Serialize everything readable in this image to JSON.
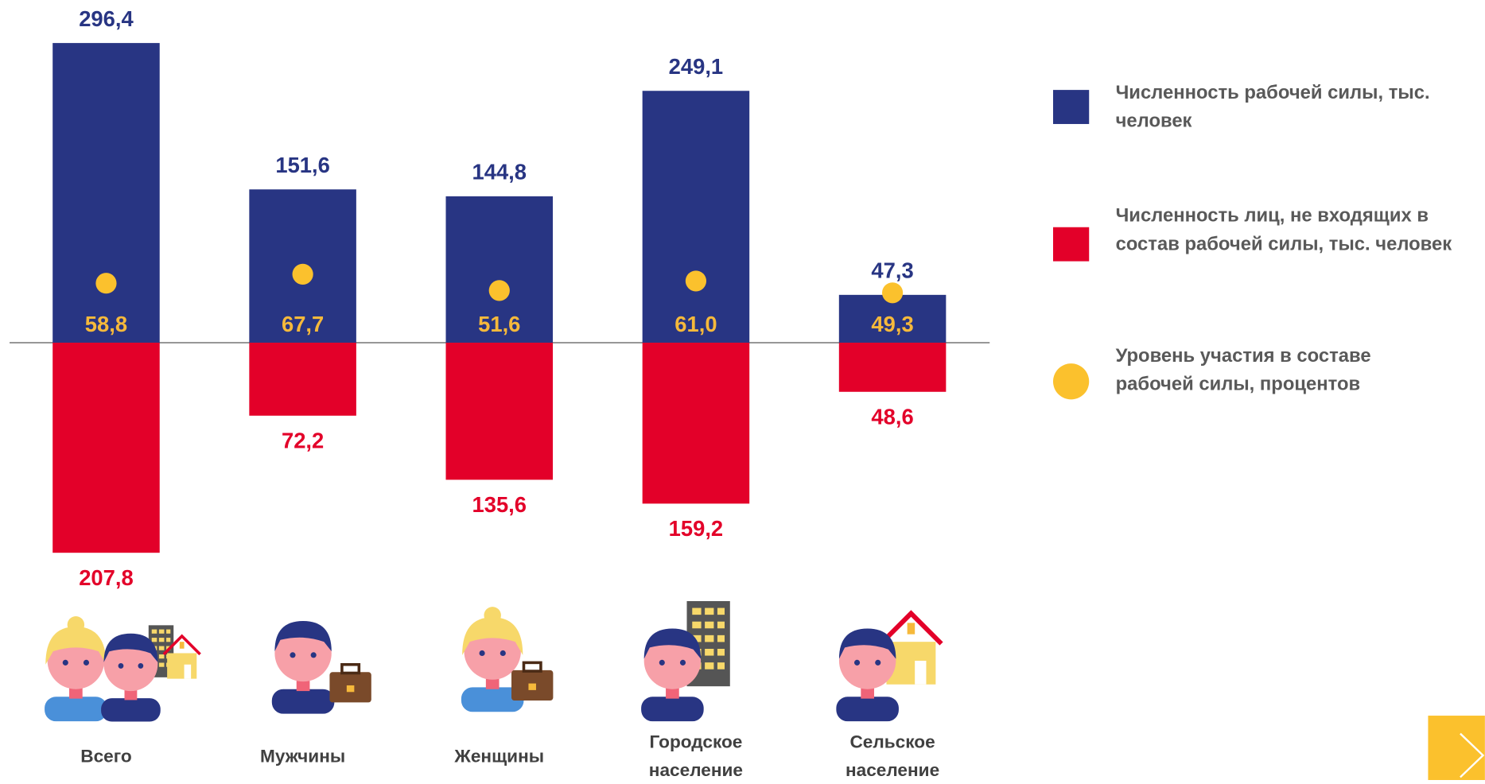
{
  "chart_data": {
    "type": "bar",
    "categories": [
      "Всего",
      "Мужчины",
      "Женщины",
      "Городское население",
      "Сельское население"
    ],
    "series": [
      {
        "name": "Численность рабочей силы, тыс. человек",
        "color": "#283583",
        "values": [
          296.4,
          151.6,
          144.8,
          249.1,
          47.3
        ],
        "value_labels": [
          "296,4",
          "151,6",
          "144,8",
          "249,1",
          "47,3"
        ]
      },
      {
        "name": "Численность лиц, не входящих в состав рабочей силы, тыс. человек",
        "color": "#e30029",
        "values": [
          207.8,
          72.2,
          135.6,
          159.2,
          48.6
        ],
        "value_labels": [
          "207,8",
          "72,2",
          "135,6",
          "159,2",
          "48,6"
        ]
      },
      {
        "name": "Уровень участия в составе рабочей силы, процентов",
        "color": "#fbc12d",
        "values": [
          58.8,
          67.7,
          51.6,
          61.0,
          49.3
        ],
        "value_labels": [
          "58,8",
          "67,7",
          "51,6",
          "61,0",
          "49,3"
        ]
      }
    ]
  }
}
